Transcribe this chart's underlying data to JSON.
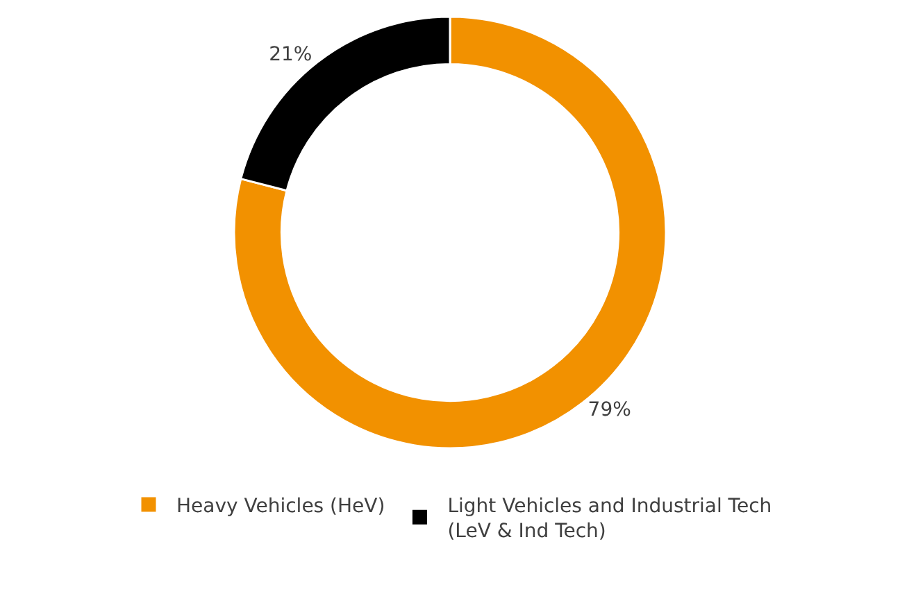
{
  "chart_data": {
    "type": "donut",
    "categories": [
      "Heavy Vehicles (HeV)",
      "Light Vehicles and Industrial Tech (LeV & Ind Tech)"
    ],
    "values": [
      79,
      21
    ],
    "colors": [
      "#f29100",
      "#000000"
    ],
    "value_labels": [
      "79%",
      "21%"
    ],
    "legend": "bottom"
  }
}
